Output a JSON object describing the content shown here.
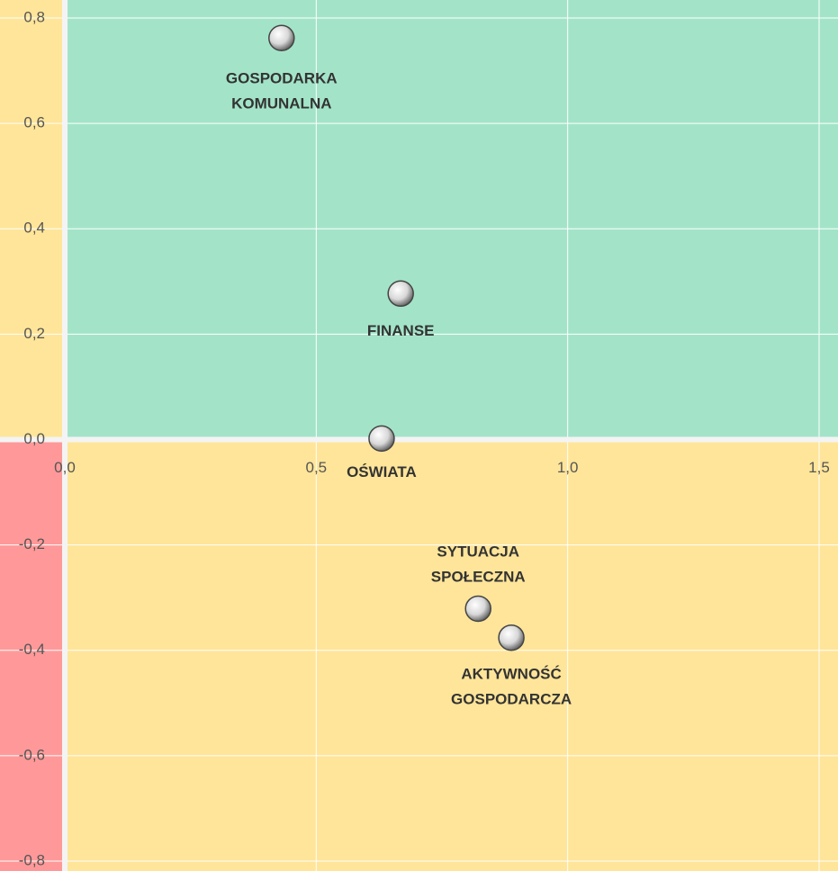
{
  "chart_data": {
    "type": "scatter",
    "points": [
      "GOSPODARKA KOMUNALNA",
      "FINANSE",
      "OŚWIATA",
      "SYTUACJA SPOŁECZNA",
      "AKTYWNOŚĆ GOSPODARCZA"
    ],
    "x": [
      0.431,
      0.668,
      0.63,
      0.822,
      0.888
    ],
    "values": [
      0.762,
      0.277,
      0.002,
      -0.321,
      -0.376
    ],
    "xlim": [
      0,
      1.5
    ],
    "ylim": [
      -0.8,
      0.8
    ],
    "xticks": [
      {
        "value": 0,
        "label": "0,0"
      },
      {
        "value": 0.5,
        "label": "0,5"
      },
      {
        "value": 1,
        "label": "1,0"
      },
      {
        "value": 1.5,
        "label": "1,5"
      }
    ],
    "yticks": [
      {
        "value": 0.8,
        "label": "0,8"
      },
      {
        "value": 0.6,
        "label": "0,6"
      },
      {
        "value": 0.4,
        "label": "0,4"
      },
      {
        "value": 0.2,
        "label": "0,2"
      },
      {
        "value": 0,
        "label": "0,0"
      },
      {
        "value": -0.2,
        "label": "-0,2"
      },
      {
        "value": -0.4,
        "label": "-0,4"
      },
      {
        "value": -0.6,
        "label": "-0,6"
      },
      {
        "value": -0.8,
        "label": "-0,8"
      }
    ],
    "grid": true
  }
}
